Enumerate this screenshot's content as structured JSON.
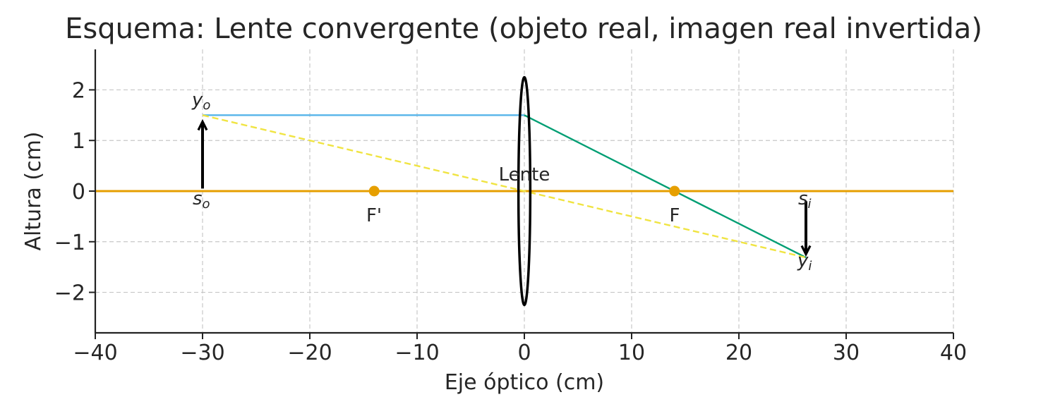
{
  "chart_data": {
    "type": "line",
    "title": "Esquema: Lente convergente (objeto real, imagen real invertida)",
    "xlabel": "Eje óptico (cm)",
    "ylabel": "Altura (cm)",
    "xlim": [
      -40,
      40
    ],
    "ylim": [
      -2.8,
      2.8
    ],
    "x_ticks": [
      -40,
      -30,
      -20,
      -10,
      0,
      10,
      20,
      30,
      40
    ],
    "y_ticks": [
      2,
      1,
      0,
      -1,
      -2
    ],
    "x_tick_labels": [
      "−40",
      "−30",
      "−20",
      "−10",
      "0",
      "10",
      "20",
      "30",
      "40"
    ],
    "y_tick_labels": [
      "2",
      "1",
      "0",
      "−1",
      "−2"
    ],
    "grid": true,
    "colors": {
      "axis": "#E69F00",
      "focal": "#E69F00",
      "ray_parallel": "#56B4E9",
      "ray_refracted": "#009E73",
      "ray_center": "#F0E442",
      "lens": "#000000",
      "arrow": "#000000"
    },
    "optical_axis": {
      "x": [
        -40,
        40
      ],
      "y": [
        0,
        0
      ]
    },
    "lens": {
      "label": "Lente",
      "center_x": 0,
      "half_height": 2.25,
      "half_width": 0.55
    },
    "focal_points": [
      {
        "label": "F'",
        "x": -14,
        "y": 0
      },
      {
        "label": "F",
        "x": 14,
        "y": 0
      }
    ],
    "object": {
      "x": -30,
      "y_base": 0,
      "y_top": 1.5
    },
    "image": {
      "x": 26.25,
      "y_base": 0,
      "y_tip": -1.3125
    },
    "rays": [
      {
        "name": "ray_parallel",
        "x": [
          -30,
          0
        ],
        "y": [
          1.5,
          1.5
        ],
        "style": "solid"
      },
      {
        "name": "ray_refracted",
        "x": [
          0,
          26.25
        ],
        "y": [
          1.5,
          -1.3125
        ],
        "style": "solid"
      },
      {
        "name": "ray_center",
        "x": [
          -30,
          26.25
        ],
        "y": [
          1.5,
          -1.3125
        ],
        "style": "dashed"
      }
    ],
    "annotations": {
      "y_o": {
        "base": "y",
        "sub": "o"
      },
      "s_o": {
        "base": "s",
        "sub": "o"
      },
      "s_i": {
        "base": "s",
        "sub": "i"
      },
      "y_i": {
        "base": "y",
        "sub": "i"
      }
    }
  }
}
